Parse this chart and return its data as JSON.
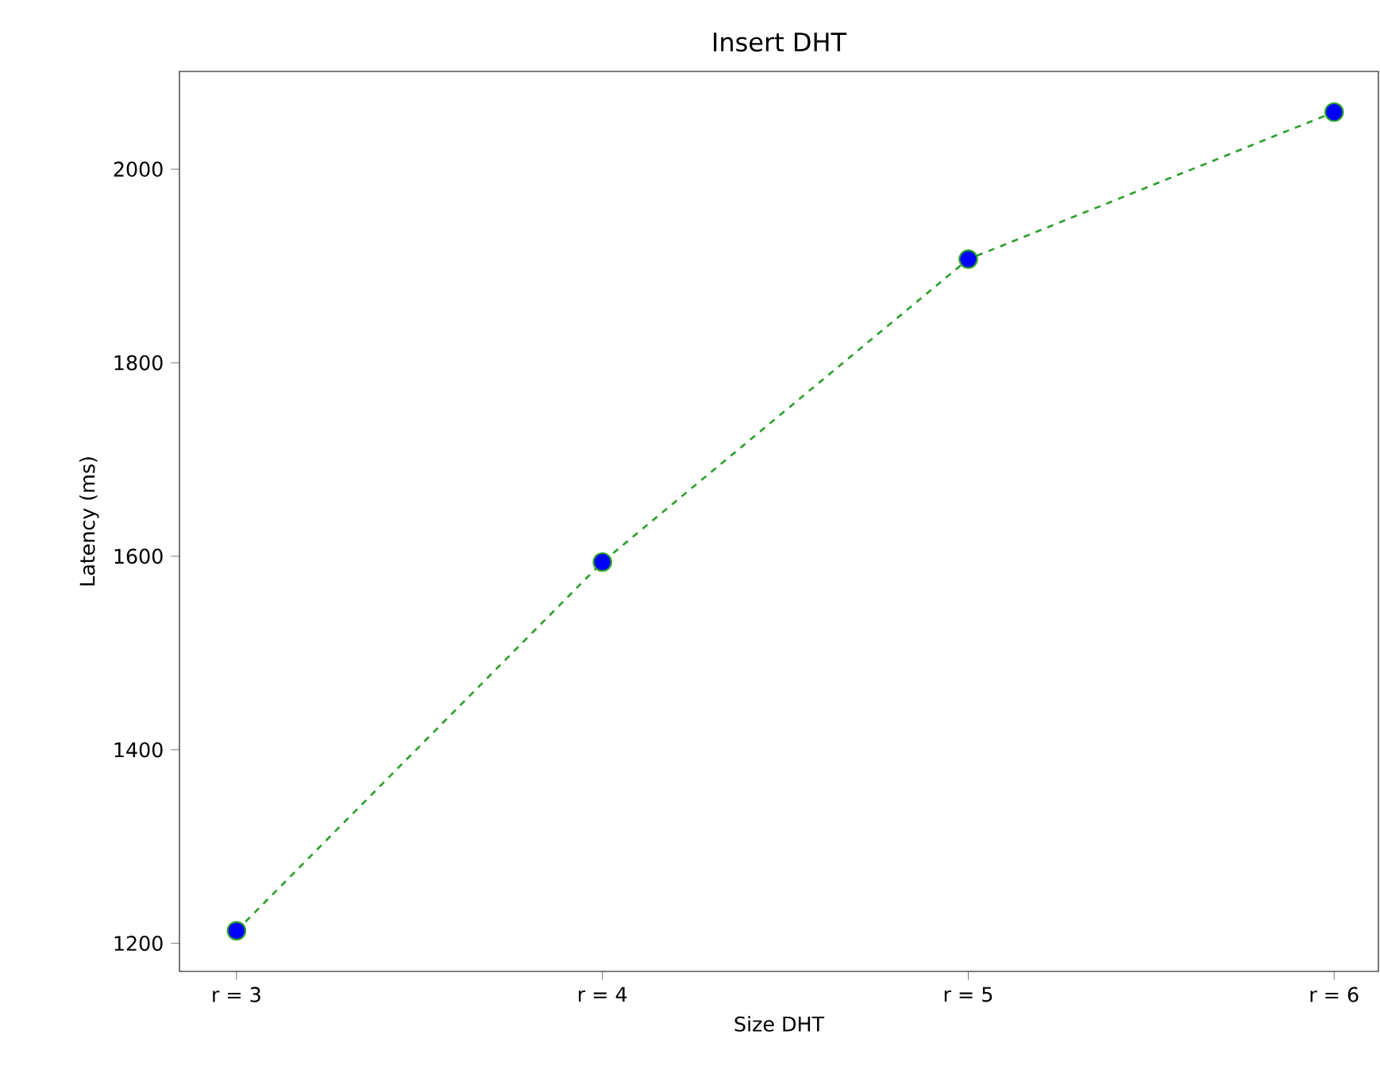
{
  "chart_data": {
    "type": "line",
    "title": "Insert DHT",
    "xlabel": "Size DHT",
    "ylabel": "Latency (ms)",
    "categories": [
      "r = 3",
      "r = 4",
      "r = 5",
      "r = 6"
    ],
    "series": [
      {
        "color": "#2ca02c",
        "colors": [
          "#0000ff",
          "#0000ff",
          "#0000ff",
          "#0000ff"
        ],
        "values": [
          1213,
          1594,
          1907,
          2059
        ]
      }
    ],
    "ylim": [
      1171,
      2101
    ],
    "yticks": [
      1200,
      1400,
      1600,
      1800,
      2000
    ],
    "marker": "circle",
    "line_style": "dashed"
  }
}
